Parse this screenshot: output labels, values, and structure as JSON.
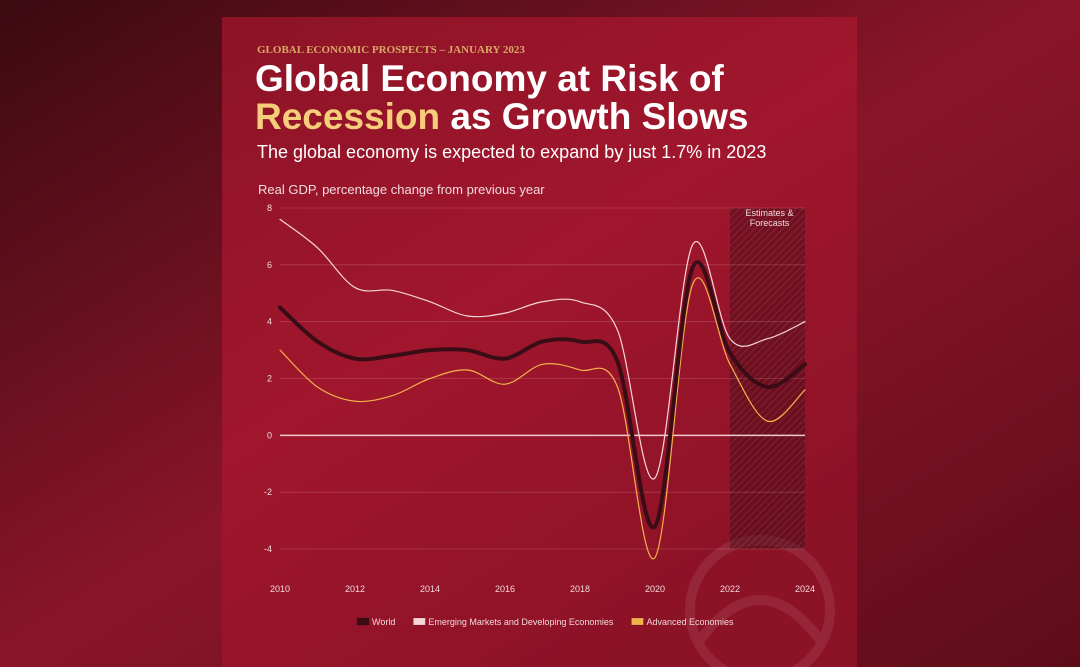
{
  "header": {
    "kicker": "GLOBAL ECONOMIC PROSPECTS – JANUARY 2023",
    "title_line1": "Global Economy at Risk of",
    "title_highlight": "Recession",
    "title_line2_rest": "as Growth Slows",
    "subtitle": "The global economy is expected to expand by just 1.7% in 2023"
  },
  "chart_data": {
    "type": "line",
    "ylabel": "Real GDP, percentage change from previous year",
    "x": [
      2010,
      2011,
      2012,
      2013,
      2014,
      2015,
      2016,
      2017,
      2018,
      2019,
      2020,
      2021,
      2022,
      2023,
      2024
    ],
    "series": [
      {
        "name": "World",
        "color": "#3a0d16",
        "values": [
          4.5,
          3.3,
          2.7,
          2.8,
          3.0,
          3.0,
          2.7,
          3.3,
          3.3,
          2.6,
          -3.2,
          5.9,
          2.9,
          1.7,
          2.5
        ]
      },
      {
        "name": "Emerging Markets and Developing Economies",
        "color": "#f7d6d8",
        "values": [
          7.6,
          6.6,
          5.2,
          5.1,
          4.7,
          4.2,
          4.3,
          4.7,
          4.7,
          3.7,
          -1.5,
          6.7,
          3.4,
          3.4,
          4.0
        ]
      },
      {
        "name": "Advanced Economies",
        "color": "#f2b24b",
        "values": [
          3.0,
          1.7,
          1.2,
          1.4,
          2.0,
          2.3,
          1.8,
          2.5,
          2.3,
          1.7,
          -4.3,
          5.3,
          2.5,
          0.5,
          1.6
        ]
      }
    ],
    "xlim": [
      2010,
      2024
    ],
    "xticks": [
      2010,
      2012,
      2014,
      2016,
      2018,
      2020,
      2022,
      2024
    ],
    "ylim": [
      -4,
      8
    ],
    "yticks": [
      -4,
      -2,
      0,
      2,
      4,
      6,
      8
    ],
    "grid": true,
    "legend": "bottom",
    "shaded_region": {
      "label": "Estimates & Forecasts",
      "from": 2022,
      "to": 2024
    }
  }
}
